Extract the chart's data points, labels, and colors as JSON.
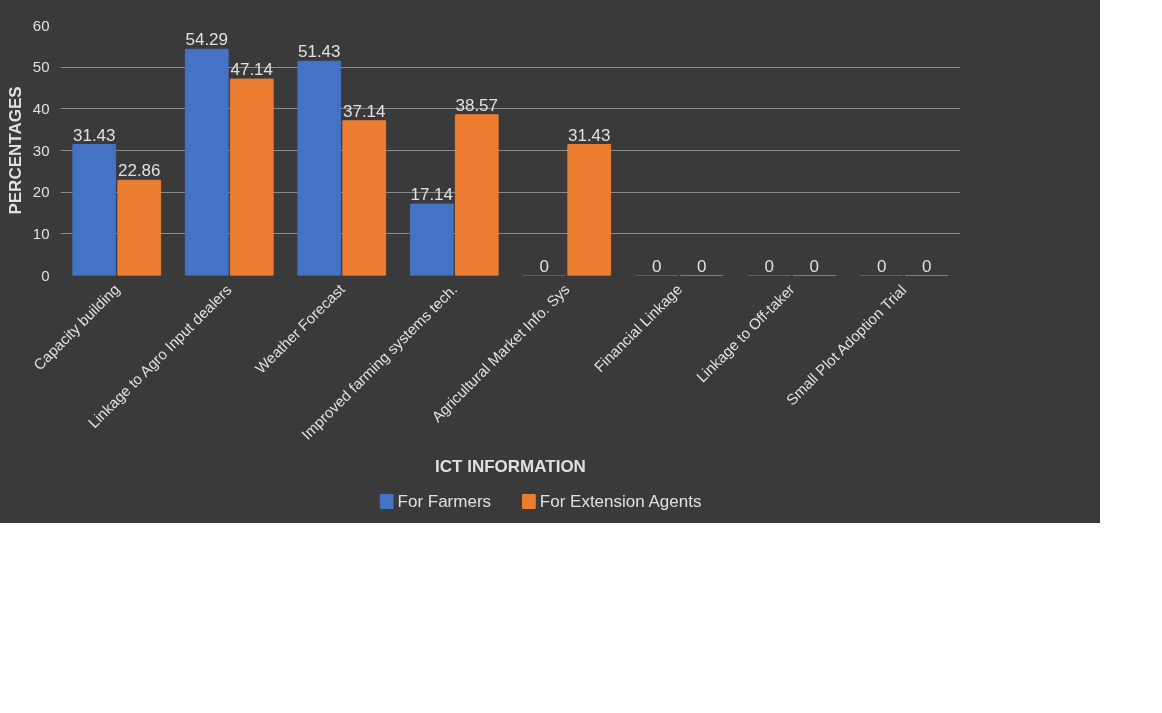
{
  "chart_data": {
    "type": "bar",
    "xlabel": "ICT INFORMATION",
    "ylabel": "PERCENTAGES",
    "categories": [
      "Capacity building",
      "Linkage to Agro Input dealers",
      "Weather Forecast",
      "Improved farming systems tech.",
      "Agricultural Market Info. Sys",
      "Financial Linkage",
      "Linkage to Off-taker",
      "Small Plot Adoption Trial"
    ],
    "series": [
      {
        "name": "For Farmers",
        "color": "#4472c4",
        "values": [
          31.43,
          54.29,
          51.43,
          17.14,
          0,
          0,
          0,
          0
        ]
      },
      {
        "name": "For Extension Agents",
        "color": "#ed7d31",
        "values": [
          22.86,
          47.14,
          37.14,
          38.57,
          31.43,
          0,
          0,
          0
        ]
      }
    ],
    "ylim": [
      0,
      60
    ],
    "yticks": [
      0,
      10,
      20,
      30,
      40,
      50,
      60
    ],
    "grid": "y",
    "legend": "bottom",
    "data_labels": true
  }
}
